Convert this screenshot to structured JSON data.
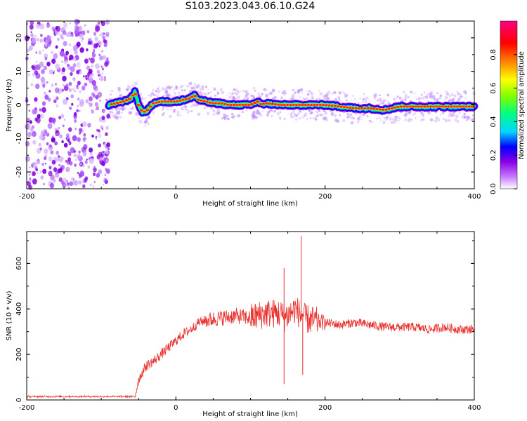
{
  "title": "S103.2023.043.06.10.G24",
  "chart_data": [
    {
      "type": "heatmap",
      "xlabel": "Height of straight line (km)",
      "ylabel": "Frequency (Hz)",
      "xlim": [
        -200,
        400
      ],
      "ylim": [
        -25,
        25
      ],
      "x_ticks": [
        -200,
        0,
        200,
        400
      ],
      "y_ticks": [
        -20,
        -10,
        0,
        10,
        20
      ],
      "colorbar": {
        "label": "Normalized spectral amplitude",
        "range": [
          0,
          1
        ],
        "ticks": [
          0.0,
          0.2,
          0.4,
          0.6,
          0.8
        ],
        "tick_labels": [
          "0.0",
          "0.2",
          "0.4",
          "0.6",
          "0.8"
        ],
        "colormap": [
          "#ffffff",
          "#c87cff",
          "#8a00e6",
          "#0000ff",
          "#00d7ff",
          "#00ff7f",
          "#7fff00",
          "#ffff00",
          "#ff8000",
          "#ff0000",
          "#ff0080"
        ]
      },
      "noise_region_x": [
        -200,
        -90
      ],
      "peak_frequency": {
        "x": [
          -90,
          -80,
          -70,
          -60,
          -55,
          -50,
          -45,
          -40,
          -30,
          -20,
          -10,
          0,
          10,
          20,
          25,
          30,
          40,
          50,
          60,
          70,
          80,
          90,
          100,
          110,
          115,
          120,
          140,
          160,
          180,
          200,
          220,
          240,
          260,
          280,
          300,
          320,
          340,
          360,
          380,
          400
        ],
        "y": [
          0,
          0.5,
          1,
          2,
          4,
          0,
          -2,
          -2,
          0.5,
          1,
          1,
          1,
          1.5,
          2,
          3,
          1.5,
          1,
          0.5,
          0.5,
          0,
          0,
          0,
          0,
          1,
          0,
          0.5,
          0,
          0,
          0,
          0,
          -0.5,
          -1,
          -1,
          -1.5,
          -0.5,
          -0.5,
          -0.5,
          -0.5,
          -0.5,
          -0.5
        ]
      }
    },
    {
      "type": "line",
      "xlabel": "Height of straight line (km)",
      "ylabel": "SNR (10 * v/v)",
      "xlim": [
        -200,
        400
      ],
      "ylim": [
        0,
        740
      ],
      "x_ticks": [
        -200,
        0,
        200,
        400
      ],
      "y_ticks": [
        0,
        200,
        400,
        600
      ],
      "color": "#e8312e",
      "series": [
        {
          "x": [
            -200,
            -150,
            -100,
            -55,
            -50,
            -45,
            -40,
            -30,
            -20,
            -10,
            0,
            10,
            20,
            30,
            40,
            60,
            80,
            100,
            120,
            140,
            145,
            160,
            168,
            170,
            172,
            180,
            200,
            220,
            240,
            260,
            280,
            300,
            320,
            340,
            360,
            380,
            400
          ],
          "values": [
            15,
            15,
            15,
            15,
            90,
            120,
            150,
            170,
            200,
            230,
            260,
            290,
            310,
            340,
            350,
            360,
            370,
            360,
            380,
            380,
            360,
            400,
            370,
            380,
            360,
            350,
            340,
            330,
            340,
            330,
            320,
            320,
            320,
            310,
            320,
            310,
            310
          ]
        }
      ],
      "spikes": [
        {
          "x": 145,
          "values": [
            580,
            70
          ]
        },
        {
          "x": 168,
          "values": [
            720
          ]
        },
        {
          "x": 170,
          "values": [
            110
          ]
        }
      ]
    }
  ]
}
